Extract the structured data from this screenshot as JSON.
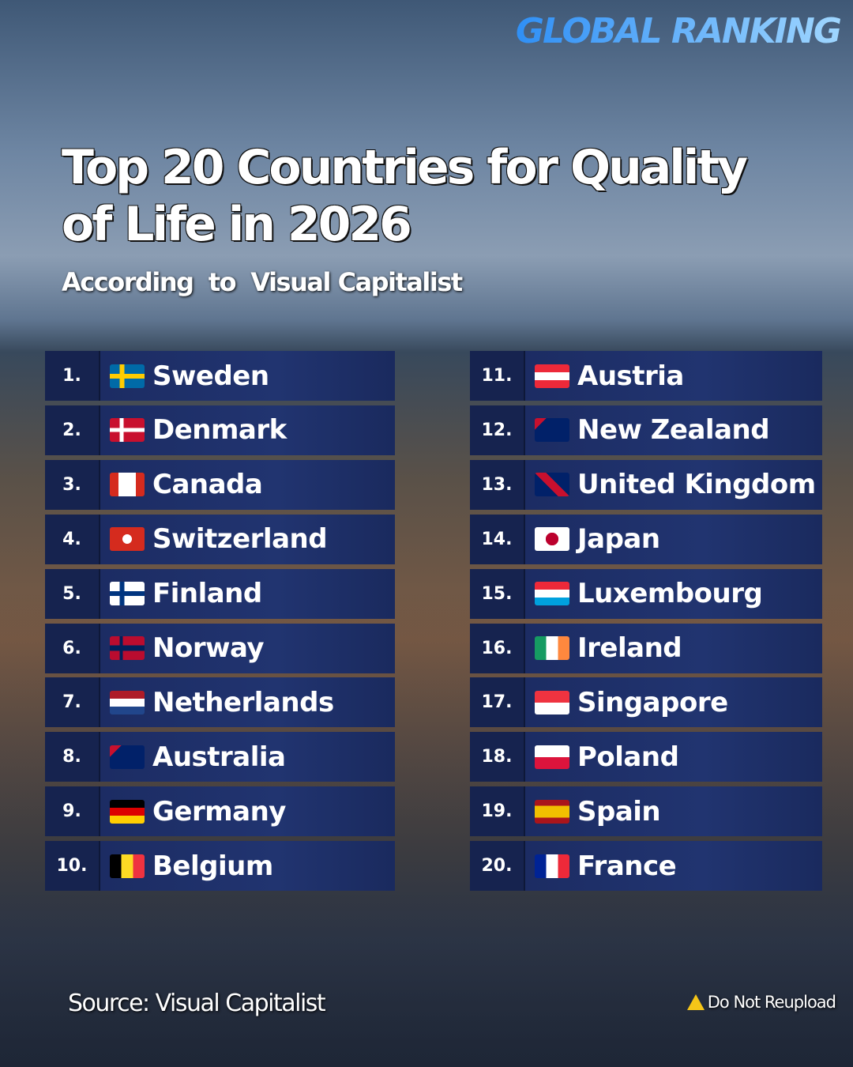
{
  "brand": "GLOBAL RANKING",
  "title": "Top 20 Countries for Quality of Life in 2026",
  "subtitle": "According  to  Visual Capitalist",
  "items": [
    {
      "rank": "1.",
      "name": "Sweden"
    },
    {
      "rank": "2.",
      "name": "Denmark"
    },
    {
      "rank": "3.",
      "name": "Canada"
    },
    {
      "rank": "4.",
      "name": "Switzerland"
    },
    {
      "rank": "5.",
      "name": "Finland"
    },
    {
      "rank": "6.",
      "name": "Norway"
    },
    {
      "rank": "7.",
      "name": "Netherlands"
    },
    {
      "rank": "8.",
      "name": "Australia"
    },
    {
      "rank": "9.",
      "name": "Germany"
    },
    {
      "rank": "10.",
      "name": "Belgium"
    },
    {
      "rank": "11.",
      "name": "Austria"
    },
    {
      "rank": "12.",
      "name": "New Zealand"
    },
    {
      "rank": "13.",
      "name": "United Kingdom"
    },
    {
      "rank": "14.",
      "name": "Japan"
    },
    {
      "rank": "15.",
      "name": "Luxembourg"
    },
    {
      "rank": "16.",
      "name": "Ireland"
    },
    {
      "rank": "17.",
      "name": "Singapore"
    },
    {
      "rank": "18.",
      "name": "Poland"
    },
    {
      "rank": "19.",
      "name": "Spain"
    },
    {
      "rank": "20.",
      "name": "France"
    }
  ],
  "source": "Source: Visual Capitalist",
  "notice": "Do Not Reupload"
}
